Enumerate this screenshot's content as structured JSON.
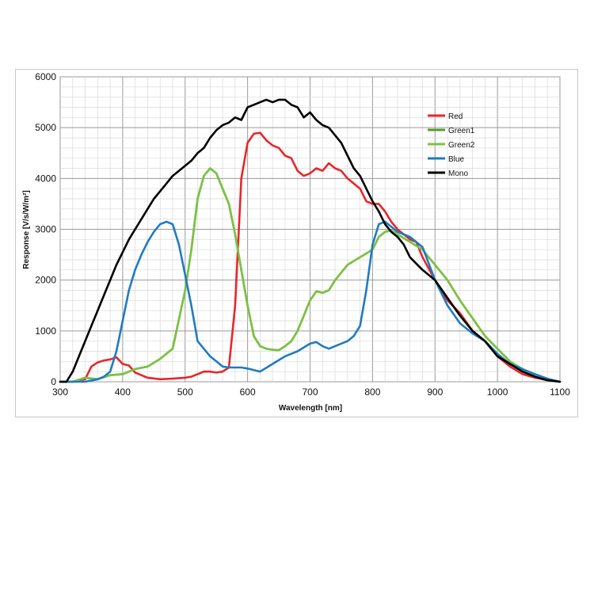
{
  "chart_data": {
    "type": "line",
    "xlabel": "Wavelength [nm]",
    "ylabel": "Response [V/s/W/m²]",
    "xlim": [
      300,
      1100
    ],
    "ylim": [
      0,
      6000
    ],
    "xticks": [
      300,
      400,
      500,
      600,
      700,
      800,
      900,
      1000,
      1100
    ],
    "yticks": [
      0,
      1000,
      2000,
      3000,
      4000,
      5000,
      6000
    ],
    "grid": true,
    "legend_position": "top-right",
    "series": [
      {
        "name": "Red",
        "color": "#e8262a",
        "x": [
          300,
          320,
          340,
          350,
          360,
          370,
          380,
          390,
          400,
          410,
          420,
          440,
          460,
          480,
          500,
          510,
          520,
          530,
          540,
          550,
          560,
          570,
          580,
          590,
          600,
          610,
          620,
          630,
          640,
          650,
          660,
          670,
          680,
          690,
          700,
          710,
          720,
          730,
          740,
          750,
          760,
          770,
          780,
          790,
          800,
          810,
          820,
          830,
          840,
          850,
          860,
          870,
          880,
          900,
          920,
          940,
          960,
          980,
          1000,
          1020,
          1040,
          1060,
          1080,
          1100
        ],
        "y": [
          0,
          0,
          50,
          300,
          380,
          420,
          440,
          480,
          350,
          320,
          180,
          80,
          50,
          60,
          80,
          100,
          150,
          200,
          200,
          180,
          200,
          280,
          1500,
          4000,
          4700,
          4880,
          4900,
          4750,
          4650,
          4600,
          4450,
          4400,
          4150,
          4050,
          4100,
          4200,
          4150,
          4300,
          4200,
          4150,
          4000,
          3900,
          3800,
          3550,
          3500,
          3500,
          3350,
          3150,
          3000,
          2900,
          2800,
          2750,
          2450,
          2000,
          1600,
          1350,
          1000,
          800,
          500,
          300,
          150,
          80,
          30,
          0
        ]
      },
      {
        "name": "Green1",
        "color": "#5a9a2e",
        "x": [
          300,
          320,
          340,
          360,
          380,
          400,
          420,
          440,
          460,
          480,
          500,
          510,
          520,
          530,
          540,
          550,
          560,
          570,
          580,
          590,
          600,
          610,
          620,
          630,
          640,
          650,
          660,
          670,
          680,
          690,
          700,
          710,
          720,
          730,
          740,
          760,
          780,
          800,
          810,
          820,
          830,
          840,
          860,
          880,
          900,
          920,
          940,
          960,
          980,
          1000,
          1020,
          1040,
          1060,
          1080,
          1100
        ],
        "y": [
          0,
          0,
          80,
          50,
          130,
          150,
          250,
          300,
          450,
          650,
          1800,
          2600,
          3600,
          4050,
          4200,
          4100,
          3800,
          3500,
          2900,
          2200,
          1500,
          900,
          700,
          650,
          630,
          620,
          700,
          800,
          1000,
          1300,
          1600,
          1780,
          1750,
          1800,
          2000,
          2300,
          2450,
          2600,
          2850,
          2950,
          2980,
          2900,
          2750,
          2600,
          2300,
          2000,
          1600,
          1250,
          900,
          650,
          400,
          250,
          100,
          30,
          0
        ]
      },
      {
        "name": "Green2",
        "color": "#7cc242",
        "x": [
          300,
          320,
          340,
          360,
          380,
          400,
          420,
          440,
          460,
          480,
          500,
          510,
          520,
          530,
          540,
          550,
          560,
          570,
          580,
          590,
          600,
          610,
          620,
          630,
          640,
          650,
          660,
          670,
          680,
          690,
          700,
          710,
          720,
          730,
          740,
          760,
          780,
          800,
          810,
          820,
          830,
          840,
          860,
          880,
          900,
          920,
          940,
          960,
          980,
          1000,
          1020,
          1040,
          1060,
          1080,
          1100
        ],
        "y": [
          0,
          0,
          80,
          50,
          130,
          150,
          250,
          300,
          450,
          650,
          1800,
          2600,
          3600,
          4050,
          4200,
          4100,
          3800,
          3500,
          2900,
          2200,
          1500,
          900,
          700,
          650,
          630,
          620,
          700,
          800,
          1000,
          1300,
          1600,
          1780,
          1750,
          1800,
          2000,
          2300,
          2450,
          2600,
          2850,
          2950,
          2980,
          2900,
          2750,
          2600,
          2300,
          2000,
          1600,
          1250,
          900,
          650,
          400,
          250,
          100,
          30,
          0
        ]
      },
      {
        "name": "Blue",
        "color": "#1f7bc1",
        "x": [
          300,
          320,
          340,
          360,
          370,
          380,
          390,
          400,
          410,
          420,
          430,
          440,
          450,
          460,
          470,
          480,
          490,
          500,
          510,
          520,
          530,
          540,
          550,
          560,
          570,
          580,
          590,
          600,
          620,
          640,
          660,
          680,
          700,
          710,
          720,
          730,
          740,
          760,
          770,
          780,
          790,
          800,
          810,
          820,
          830,
          840,
          860,
          880,
          900,
          920,
          940,
          960,
          980,
          1000,
          1020,
          1040,
          1060,
          1080,
          1100
        ],
        "y": [
          0,
          0,
          0,
          50,
          100,
          200,
          600,
          1200,
          1800,
          2200,
          2500,
          2750,
          2950,
          3100,
          3150,
          3100,
          2700,
          2100,
          1500,
          800,
          650,
          500,
          400,
          300,
          280,
          280,
          280,
          260,
          200,
          350,
          500,
          600,
          750,
          780,
          700,
          650,
          700,
          800,
          900,
          1100,
          1800,
          2700,
          3100,
          3150,
          3050,
          2950,
          2850,
          2650,
          2000,
          1500,
          1150,
          950,
          800,
          550,
          350,
          250,
          150,
          60,
          0
        ]
      },
      {
        "name": "Mono",
        "color": "#000000",
        "x": [
          300,
          310,
          320,
          330,
          340,
          350,
          360,
          370,
          380,
          390,
          400,
          410,
          420,
          430,
          440,
          450,
          460,
          470,
          480,
          490,
          500,
          510,
          520,
          530,
          540,
          550,
          560,
          570,
          580,
          590,
          600,
          610,
          620,
          630,
          640,
          650,
          660,
          670,
          680,
          690,
          700,
          710,
          720,
          730,
          740,
          750,
          760,
          770,
          780,
          790,
          800,
          810,
          820,
          830,
          840,
          850,
          860,
          880,
          900,
          920,
          940,
          960,
          980,
          1000,
          1020,
          1040,
          1060,
          1080,
          1100
        ],
        "y": [
          0,
          0,
          200,
          500,
          800,
          1100,
          1400,
          1700,
          2000,
          2300,
          2550,
          2800,
          3000,
          3200,
          3400,
          3600,
          3750,
          3900,
          4050,
          4150,
          4250,
          4350,
          4500,
          4600,
          4800,
          4950,
          5050,
          5100,
          5200,
          5150,
          5400,
          5450,
          5500,
          5550,
          5500,
          5550,
          5550,
          5450,
          5400,
          5200,
          5300,
          5150,
          5050,
          5000,
          4850,
          4700,
          4450,
          4200,
          4050,
          3800,
          3550,
          3350,
          3100,
          2950,
          2850,
          2700,
          2450,
          2200,
          2000,
          1650,
          1300,
          1000,
          800,
          500,
          350,
          200,
          100,
          30,
          0
        ]
      }
    ]
  }
}
